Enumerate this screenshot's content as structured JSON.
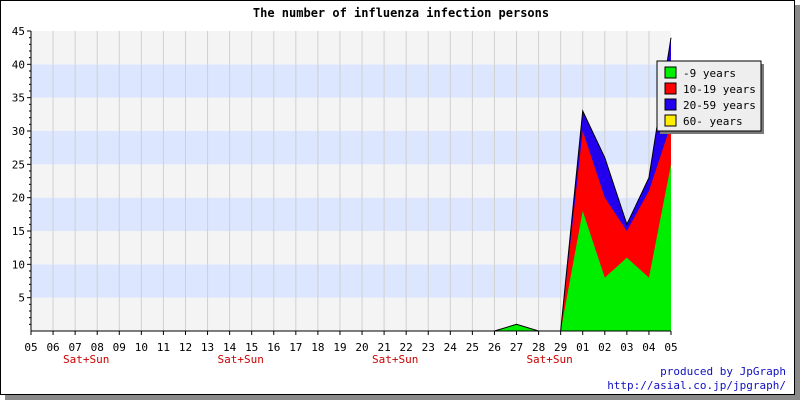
{
  "chart_data": {
    "type": "area",
    "stacked": true,
    "title": "The number of influenza infection persons",
    "xlabel": "",
    "ylabel": "",
    "categories": [
      "05",
      "06",
      "07",
      "08",
      "09",
      "10",
      "11",
      "12",
      "13",
      "14",
      "15",
      "16",
      "17",
      "18",
      "19",
      "20",
      "21",
      "22",
      "23",
      "24",
      "25",
      "26",
      "27",
      "28",
      "29",
      "01",
      "02",
      "03",
      "04",
      "05"
    ],
    "weekend_labels": [
      {
        "category_index": 2,
        "text": "Sat+Sun"
      },
      {
        "category_index": 9,
        "text": "Sat+Sun"
      },
      {
        "category_index": 16,
        "text": "Sat+Sun"
      },
      {
        "category_index": 23,
        "text": "Sat+Sun"
      }
    ],
    "weekend_label_color": "#cc0000",
    "ylim": [
      0,
      45
    ],
    "yticks": [
      5,
      10,
      15,
      20,
      25,
      30,
      35,
      40,
      45
    ],
    "grid": true,
    "band_colors": [
      "#f4f4f4",
      "#dde6ff"
    ],
    "legend_position": "right",
    "series": [
      {
        "name": "-9 years",
        "color": "#00ee00",
        "values": [
          0,
          0,
          0,
          0,
          0,
          0,
          0,
          0,
          0,
          0,
          0,
          0,
          0,
          0,
          0,
          0,
          0,
          0,
          0,
          0,
          0,
          0,
          1,
          0,
          0,
          18,
          8,
          11,
          8,
          25
        ]
      },
      {
        "name": "10-19 years",
        "color": "#ff0000",
        "values": [
          0,
          0,
          0,
          0,
          0,
          0,
          0,
          0,
          0,
          0,
          0,
          0,
          0,
          0,
          0,
          0,
          0,
          0,
          0,
          0,
          0,
          0,
          0,
          0,
          0,
          12,
          12,
          4,
          13,
          6
        ]
      },
      {
        "name": "20-59 years",
        "color": "#2200ee",
        "values": [
          0,
          0,
          0,
          0,
          0,
          0,
          0,
          0,
          0,
          0,
          0,
          0,
          0,
          0,
          0,
          0,
          0,
          0,
          0,
          0,
          0,
          0,
          0,
          0,
          0,
          3,
          6,
          1,
          2,
          13
        ]
      },
      {
        "name": "60- years",
        "color": "#ffee00",
        "values": [
          0,
          0,
          0,
          0,
          0,
          0,
          0,
          0,
          0,
          0,
          0,
          0,
          0,
          0,
          0,
          0,
          0,
          0,
          0,
          0,
          0,
          0,
          0,
          0,
          0,
          0,
          0,
          0,
          0,
          0
        ]
      }
    ]
  },
  "footer": {
    "line1": "produced by JpGraph",
    "line2": "http://asial.co.jp/jpgraph/"
  }
}
